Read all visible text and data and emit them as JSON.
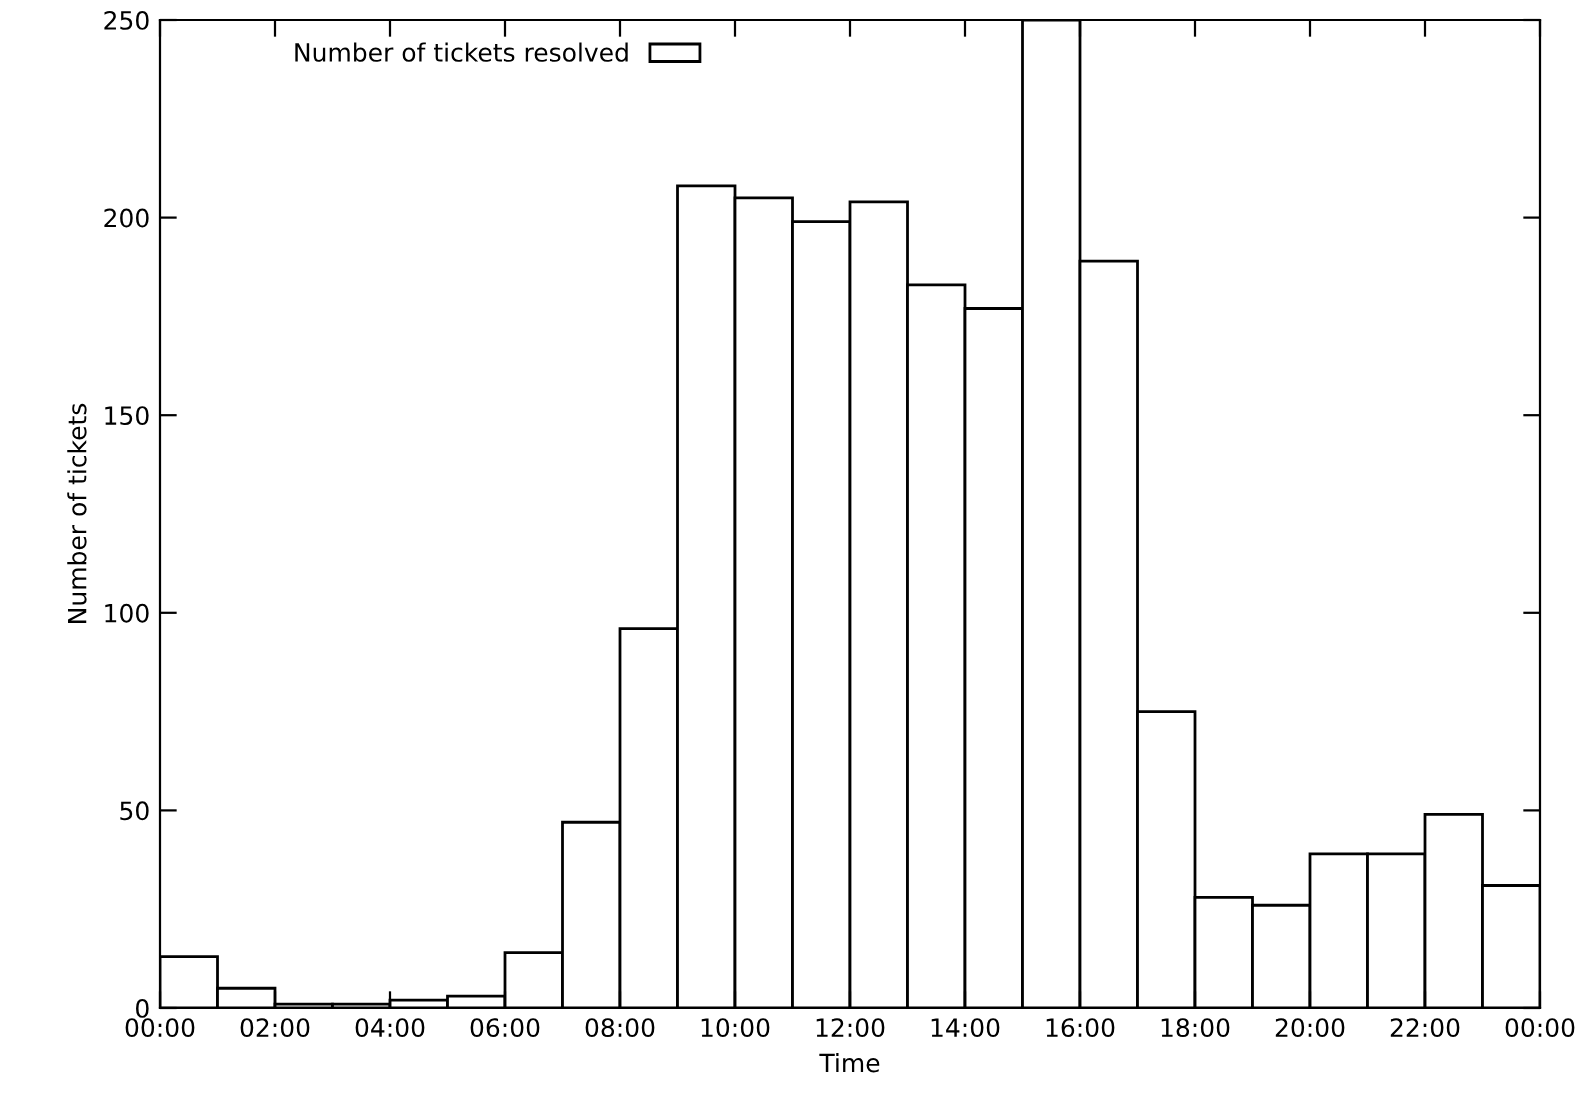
{
  "chart_data": {
    "type": "histogram",
    "xlabel": "Time",
    "ylabel": "Number of tickets",
    "series": [
      {
        "name": "Number of tickets resolved",
        "color": "#ffffff",
        "values": [
          13,
          5,
          1,
          1,
          2,
          3,
          14,
          47,
          96,
          208,
          205,
          199,
          204,
          183,
          177,
          250,
          189,
          75,
          28,
          26,
          39,
          39,
          49,
          31
        ]
      }
    ],
    "bins": [
      0,
      1,
      2,
      3,
      4,
      5,
      6,
      7,
      8,
      9,
      10,
      11,
      12,
      13,
      14,
      15,
      16,
      17,
      18,
      19,
      20,
      21,
      22,
      23,
      24
    ],
    "xlim": [
      0,
      24
    ],
    "xticks": [
      {
        "value": 0,
        "label": "00:00"
      },
      {
        "value": 2,
        "label": "02:00"
      },
      {
        "value": 4,
        "label": "04:00"
      },
      {
        "value": 6,
        "label": "06:00"
      },
      {
        "value": 8,
        "label": "08:00"
      },
      {
        "value": 10,
        "label": "10:00"
      },
      {
        "value": 12,
        "label": "12:00"
      },
      {
        "value": 14,
        "label": "14:00"
      },
      {
        "value": 16,
        "label": "16:00"
      },
      {
        "value": 18,
        "label": "18:00"
      },
      {
        "value": 20,
        "label": "20:00"
      },
      {
        "value": 22,
        "label": "22:00"
      },
      {
        "value": 24,
        "label": "00:00"
      }
    ],
    "ylim": [
      0,
      250
    ],
    "yticks": [
      0,
      50,
      100,
      150,
      200,
      250
    ],
    "grid": false,
    "legend": "top left"
  }
}
